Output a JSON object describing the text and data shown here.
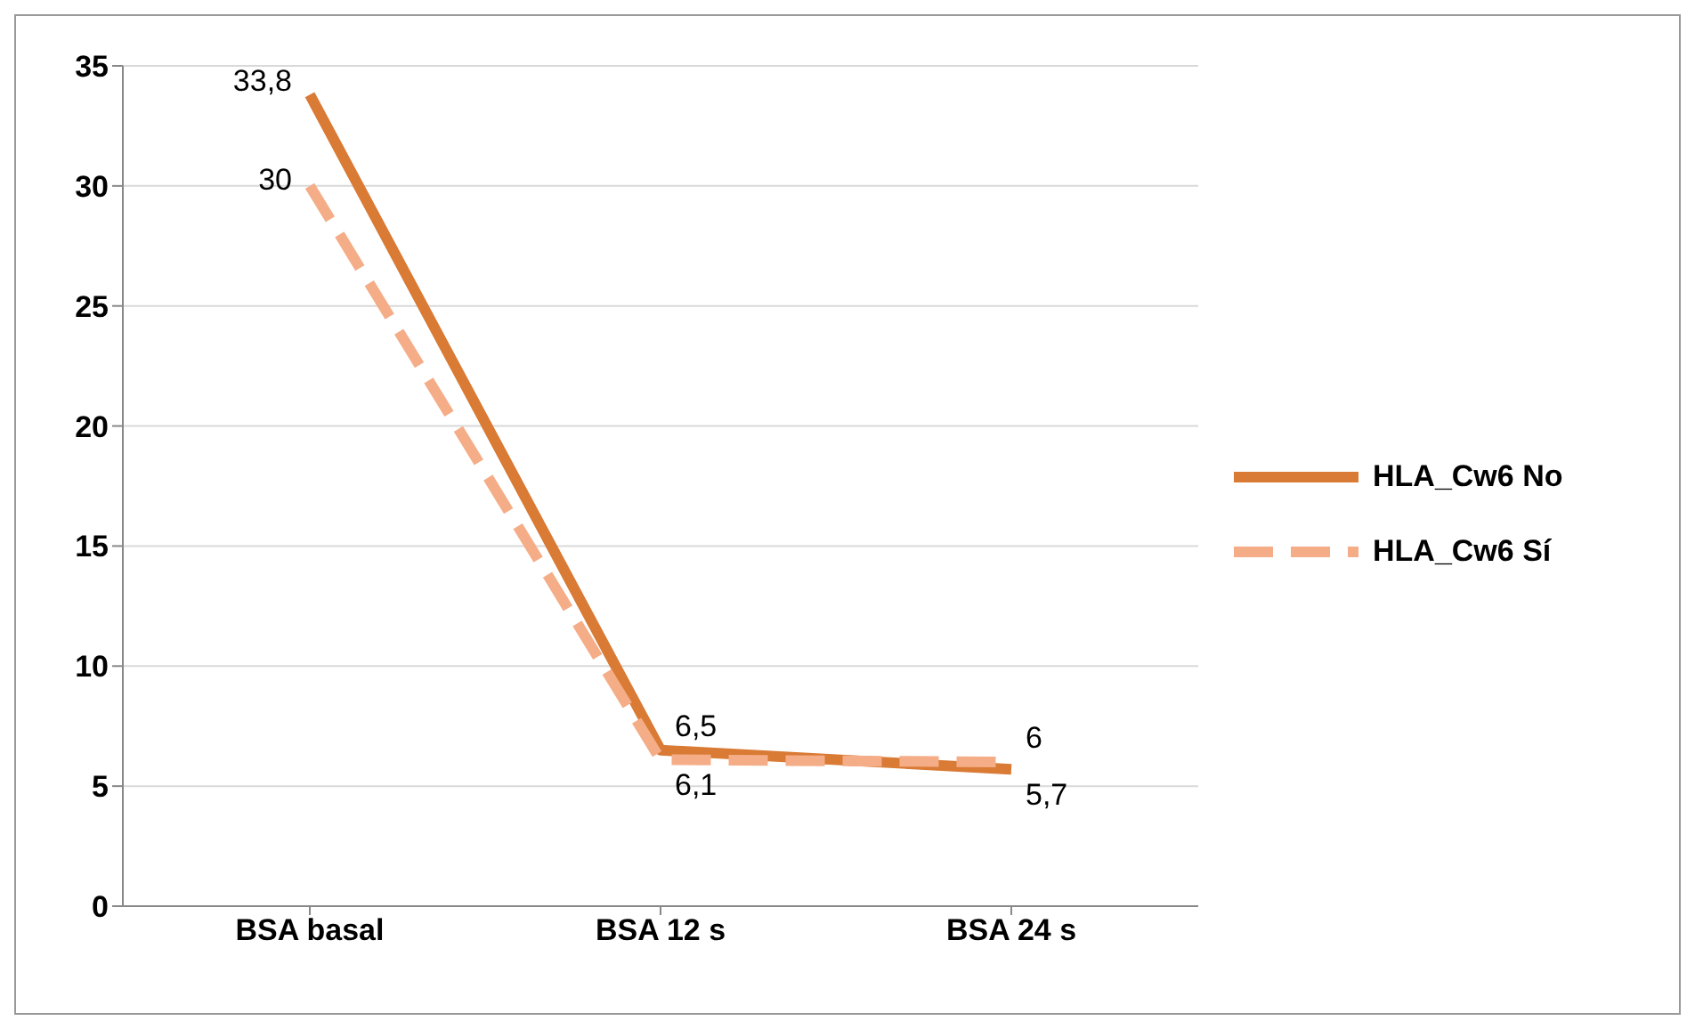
{
  "chart_data": {
    "type": "line",
    "categories": [
      "BSA basal",
      "BSA 12 s",
      "BSA 24 s"
    ],
    "series": [
      {
        "name": "HLA_Cw6 No",
        "color": "#d97a35",
        "values": [
          33.8,
          6.5,
          5.7
        ],
        "value_labels": [
          "33,8",
          "6,5",
          "5,7"
        ],
        "line_style": "solid"
      },
      {
        "name": "HLA_Cw6 Sí",
        "color": "#f5ad88",
        "values": [
          30,
          6.1,
          6
        ],
        "value_labels": [
          "30",
          "6,1",
          "6"
        ],
        "line_style": "dashed"
      }
    ],
    "ylim": [
      0,
      35
    ],
    "yticks": [
      0,
      5,
      10,
      15,
      20,
      25,
      30,
      35
    ],
    "grid": "y",
    "legend": "right",
    "marker": "none"
  }
}
